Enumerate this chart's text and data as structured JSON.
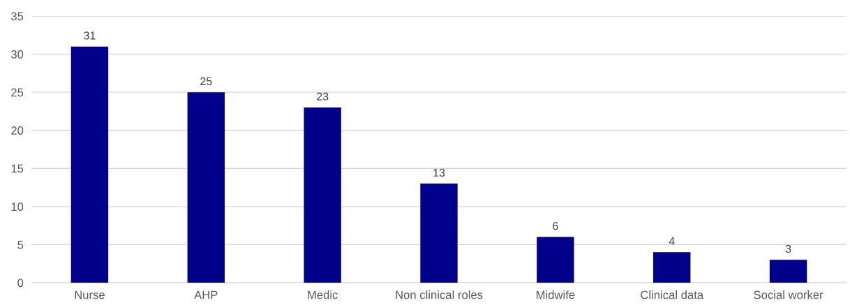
{
  "chart_data": {
    "type": "bar",
    "categories": [
      "Nurse",
      "AHP",
      "Medic",
      "Non clinical roles",
      "Midwife",
      "Clinical data",
      "Social worker"
    ],
    "values": [
      31,
      25,
      23,
      13,
      6,
      4,
      3
    ],
    "color": "#00008b",
    "ylim": [
      0,
      35
    ],
    "yticks": [
      0,
      5,
      10,
      15,
      20,
      25,
      30,
      35
    ],
    "grid": "y",
    "data_labels": true
  }
}
